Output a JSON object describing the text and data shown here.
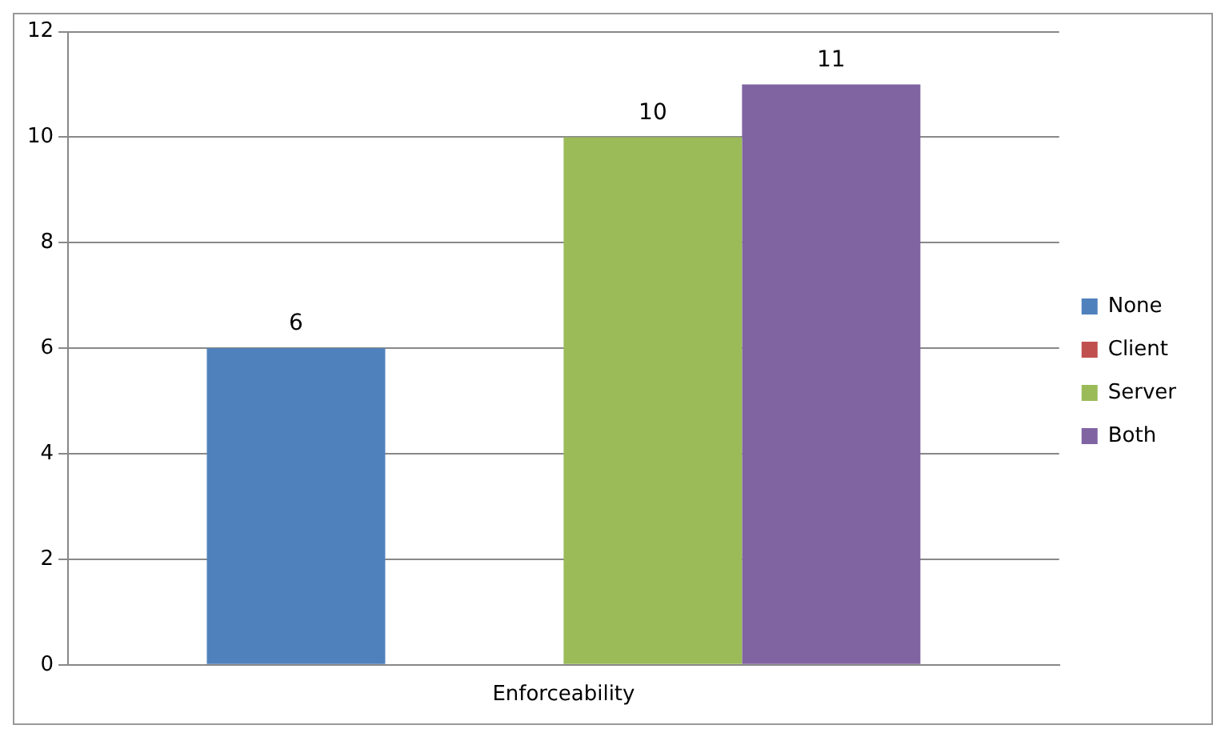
{
  "chart_data": {
    "type": "bar",
    "categories": [
      "Enforceability"
    ],
    "series": [
      {
        "name": "None",
        "color": "#4f81bd",
        "values": [
          6
        ],
        "value_labels": [
          "6"
        ]
      },
      {
        "name": "Client",
        "color": "#c0504d",
        "values": [
          0
        ],
        "value_labels": [
          null
        ]
      },
      {
        "name": "Server",
        "color": "#9bbb59",
        "values": [
          10
        ],
        "value_labels": [
          "10"
        ]
      },
      {
        "name": "Both",
        "color": "#8064a2",
        "values": [
          11
        ],
        "value_labels": [
          "11"
        ]
      }
    ],
    "ylim": [
      0,
      12
    ],
    "yticks": [
      0,
      2,
      4,
      6,
      8,
      10,
      12
    ],
    "grid": "y",
    "legend": "right"
  }
}
